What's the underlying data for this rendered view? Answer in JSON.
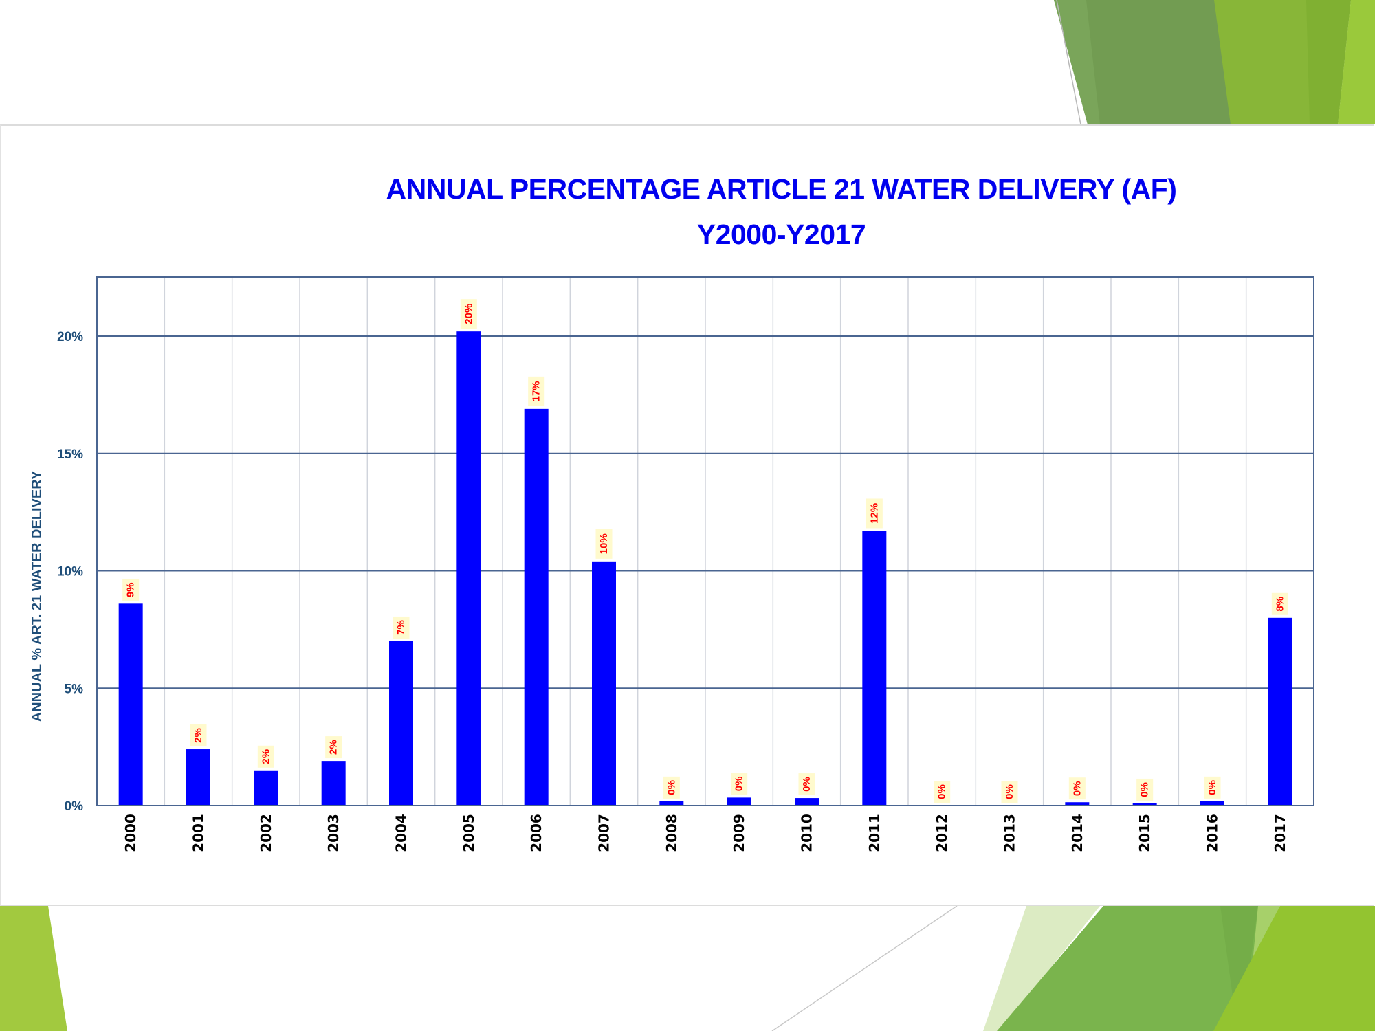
{
  "slide": {
    "theme_colors": {
      "dark_green": "#729c52",
      "mid_green": "#7ab24d",
      "lime_green": "#8ab836",
      "light_lime": "#9ec93c",
      "pale_green": "#dcebc3"
    }
  },
  "chart_data": {
    "type": "bar",
    "title": "ANNUAL PERCENTAGE ARTICLE 21 WATER DELIVERY (AF)",
    "subtitle": "Y2000-Y2017",
    "xlabel": "",
    "ylabel": "ANNUAL % ART. 21 WATER DELIVERY",
    "ylim": [
      0,
      22.5
    ],
    "yticks": [
      0,
      5,
      10,
      15,
      20
    ],
    "ytick_labels": [
      "0%",
      "5%",
      "10%",
      "15%",
      "20%"
    ],
    "grid": "horizontal major + vertical category separators",
    "legend": "none",
    "categories": [
      "2000",
      "2001",
      "2002",
      "2003",
      "2004",
      "2005",
      "2006",
      "2007",
      "2008",
      "2009",
      "2010",
      "2011",
      "2012",
      "2013",
      "2014",
      "2015",
      "2016",
      "2017"
    ],
    "values": [
      8.6,
      2.4,
      1.5,
      1.9,
      7.0,
      20.2,
      16.9,
      10.4,
      0.18,
      0.34,
      0.32,
      11.7,
      0.0,
      0.0,
      0.14,
      0.09,
      0.18,
      8.0
    ],
    "data_labels": [
      "9%",
      "2%",
      "2%",
      "2%",
      "7%",
      "20%",
      "17%",
      "10%",
      "0%",
      "0%",
      "0%",
      "12%",
      "0%",
      "0%",
      "0%",
      "0%",
      "0%",
      "8%"
    ],
    "colors": {
      "bar": "#0000ff",
      "data_label_text": "#ff0000",
      "data_label_bg": "#fffacd",
      "title": "#0000ee",
      "axis_text": "#1f4e79",
      "major_grid": "#4a6591",
      "category_grid": "#d0d4dc",
      "x_tick_text": "#000000"
    }
  }
}
